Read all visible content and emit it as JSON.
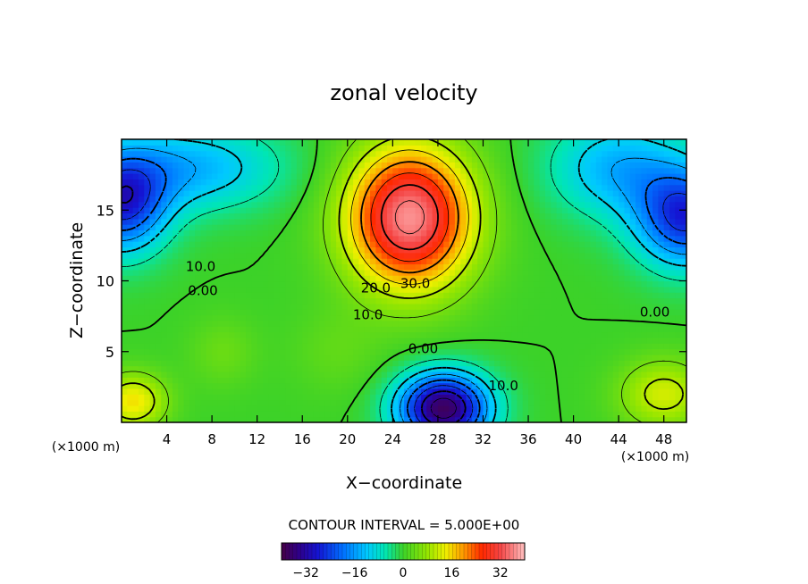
{
  "chart_data": {
    "type": "heatmap",
    "title": "zonal velocity",
    "xlabel": "X−coordinate",
    "ylabel": "Z−coordinate",
    "x_unit_left": "(×1000 m)",
    "x_unit_right": "(×1000 m)",
    "xlim": [
      0,
      50
    ],
    "ylim": [
      0,
      20
    ],
    "x_ticks": [
      4,
      8,
      12,
      16,
      20,
      24,
      28,
      32,
      36,
      40,
      44,
      48
    ],
    "y_ticks": [
      5,
      10,
      15
    ],
    "contour_interval_text": "CONTOUR INTERVAL = 5.000E+00",
    "contour_labels": [
      {
        "text": "10.0",
        "x": 7.0,
        "y": 11.0
      },
      {
        "text": "0.00",
        "x": 7.2,
        "y": 9.3
      },
      {
        "text": "20.0",
        "x": 22.5,
        "y": 9.5
      },
      {
        "text": "30.0",
        "x": 26.0,
        "y": 9.8
      },
      {
        "text": "10.0",
        "x": 21.8,
        "y": 7.6
      },
      {
        "text": "0.00",
        "x": 26.7,
        "y": 5.2
      },
      {
        "text": "10.0",
        "x": 33.8,
        "y": 2.6
      },
      {
        "text": "0.00",
        "x": 47.2,
        "y": 7.8
      }
    ],
    "colorbar": {
      "vmin": -40,
      "vmax": 40,
      "tick_values": [
        -32,
        -16,
        0,
        16,
        32
      ],
      "tick_labels": [
        "−32",
        "−16",
        "0",
        "16",
        "32"
      ]
    },
    "field_features": [
      {
        "x": 25.5,
        "z": 14.5,
        "amp": 37,
        "sx": 5.5,
        "sz": 5.0
      },
      {
        "x": 28.5,
        "z": 1.0,
        "amp": -38,
        "sx": 4.0,
        "sz": 2.5
      },
      {
        "x": 0.0,
        "z": 15.5,
        "amp": -26,
        "sx": 4.0,
        "sz": 3.5
      },
      {
        "x": 50.0,
        "z": 14.5,
        "amp": -26,
        "sx": 4.5,
        "sz": 3.5
      },
      {
        "x": 6.0,
        "z": 18.0,
        "amp": -14,
        "sx": 8.0,
        "sz": 3.0
      },
      {
        "x": 44.0,
        "z": 18.0,
        "amp": -14,
        "sx": 6.0,
        "sz": 3.5
      },
      {
        "x": 1.0,
        "z": 1.5,
        "amp": 15,
        "sx": 3.0,
        "sz": 2.0
      },
      {
        "x": 48.0,
        "z": 2.0,
        "amp": 12,
        "sx": 4.0,
        "sz": 2.5
      },
      {
        "x": 9.0,
        "z": 5.0,
        "amp": 4,
        "sx": 3.0,
        "sz": 2.5
      },
      {
        "x": 19.0,
        "z": 5.0,
        "amp": 3,
        "sx": 4.0,
        "sz": 3.0
      }
    ]
  }
}
